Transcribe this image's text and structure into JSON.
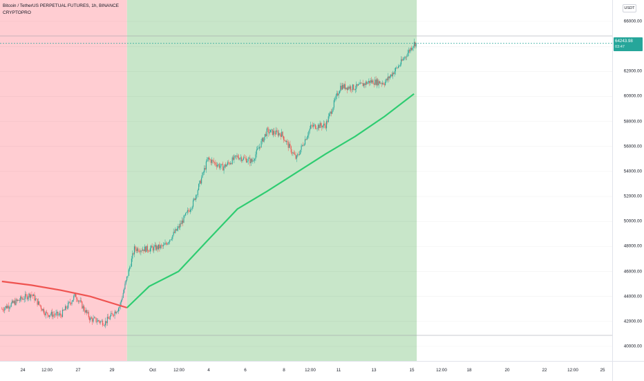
{
  "legend": {
    "title": "Bitcoin / TetherUS PERPETUAL FUTURES, 1h, BINANCE",
    "indicator": "CRYPTOPRO"
  },
  "price_axis": {
    "currency": "USDT",
    "ticks": [
      {
        "label": "66000.00",
        "value": 66000
      },
      {
        "label": "64000.00",
        "value": 64000
      },
      {
        "label": "62000.00",
        "value": 62000
      },
      {
        "label": "60000.00",
        "value": 60000
      },
      {
        "label": "58000.00",
        "value": 58000
      },
      {
        "label": "56000.00",
        "value": 56000
      },
      {
        "label": "54000.00",
        "value": 54000
      },
      {
        "label": "52000.00",
        "value": 52000
      },
      {
        "label": "50000.00",
        "value": 50000
      },
      {
        "label": "48000.00",
        "value": 48000
      },
      {
        "label": "46000.00",
        "value": 46000
      },
      {
        "label": "44000.00",
        "value": 44000
      },
      {
        "label": "42000.00",
        "value": 42000
      },
      {
        "label": "40000.00",
        "value": 40000
      }
    ],
    "last_price": "64243.98",
    "countdown": "03:47"
  },
  "time_axis": {
    "ticks": [
      "24",
      "12:00",
      "27",
      "29",
      "Oct",
      "12:00",
      "4",
      "6",
      "8",
      "12:00",
      "11",
      "13",
      "15",
      "12:00",
      "18",
      "20",
      "22",
      "12:00",
      "25"
    ]
  },
  "colors": {
    "bear_zone": "#ffcdd2",
    "bull_zone": "#c8e6c9",
    "ma_bear": "#ef5350",
    "ma_bull": "#2ecc71",
    "candle_up": "#26a69a",
    "candle_down": "#ef5350",
    "last_price_bg": "#26a69a"
  },
  "chart_data": {
    "type": "candlestick",
    "symbol": "Bitcoin / TetherUS PERPETUAL FUTURES",
    "interval": "1h",
    "exchange": "BINANCE",
    "ylim": [
      39500,
      67500
    ],
    "regimes": [
      {
        "trend": "bearish",
        "color": "red",
        "from": "Sep 22",
        "to": "Sep 30 12:00"
      },
      {
        "trend": "bullish",
        "color": "green",
        "from": "Sep 30 12:00",
        "to": "Oct 20"
      }
    ],
    "close_path": [
      [
        "Sep 22",
        43000
      ],
      [
        "Sep 23",
        43600
      ],
      [
        "Sep 24",
        44200
      ],
      [
        "Sep 25",
        42600
      ],
      [
        "Sep 26",
        42500
      ],
      [
        "Sep 27",
        44100
      ],
      [
        "Sep 28",
        42200
      ],
      [
        "Sep 29",
        41900
      ],
      [
        "Sep 30",
        43200
      ],
      [
        "Oct 1",
        47800
      ],
      [
        "Oct 2",
        47800
      ],
      [
        "Oct 3",
        48000
      ],
      [
        "Oct 4",
        49500
      ],
      [
        "Oct 5",
        51500
      ],
      [
        "Oct 6",
        55000
      ],
      [
        "Oct 7",
        54300
      ],
      [
        "Oct 8",
        55200
      ],
      [
        "Oct 9",
        54800
      ],
      [
        "Oct 10",
        57200
      ],
      [
        "Oct 11",
        57000
      ],
      [
        "Oct 12",
        55000
      ],
      [
        "Oct 13",
        57600
      ],
      [
        "Oct 14",
        57700
      ],
      [
        "Oct 15",
        60800
      ],
      [
        "Oct 16",
        60700
      ],
      [
        "Oct 17",
        61200
      ],
      [
        "Oct 18",
        61100
      ],
      [
        "Oct 19",
        62500
      ],
      [
        "Oct 20",
        64243.98
      ]
    ],
    "moving_average": [
      [
        "Sep 22",
        45200
      ],
      [
        "Sep 24",
        44900
      ],
      [
        "Sep 26",
        44500
      ],
      [
        "Sep 28",
        44000
      ],
      [
        "Sep 30 12:00",
        43100
      ],
      [
        "Oct 2",
        44800
      ],
      [
        "Oct 4",
        46000
      ],
      [
        "Oct 6",
        48500
      ],
      [
        "Oct 8",
        51000
      ],
      [
        "Oct 10",
        52400
      ],
      [
        "Oct 12",
        53900
      ],
      [
        "Oct 14",
        55400
      ],
      [
        "Oct 16",
        56800
      ],
      [
        "Oct 18",
        58400
      ],
      [
        "Oct 20",
        60200
      ]
    ],
    "grid": true
  }
}
